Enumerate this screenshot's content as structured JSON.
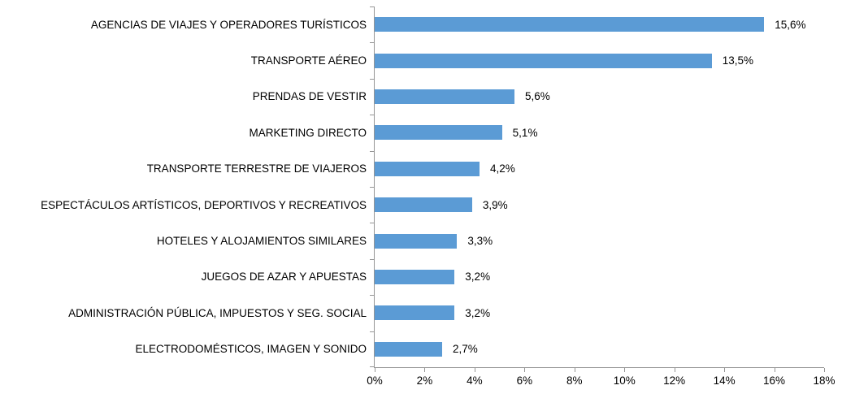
{
  "chart_data": {
    "type": "bar",
    "orientation": "horizontal",
    "title": "",
    "xlabel": "",
    "ylabel": "",
    "xlim": [
      0,
      18
    ],
    "x_tick_labels": [
      "0%",
      "2%",
      "4%",
      "6%",
      "8%",
      "10%",
      "12%",
      "14%",
      "16%",
      "18%"
    ],
    "grid": false,
    "legend": "none",
    "bar_color": "#5B9BD5",
    "axis_color": "#969696",
    "text_color": "#000000",
    "categories": [
      "AGENCIAS DE VIAJES Y OPERADORES TURÍSTICOS",
      "TRANSPORTE AÉREO",
      "PRENDAS DE VESTIR",
      "MARKETING DIRECTO",
      "TRANSPORTE TERRESTRE DE VIAJEROS",
      "ESPECTÁCULOS ARTÍSTICOS, DEPORTIVOS Y RECREATIVOS",
      "HOTELES  Y ALOJAMIENTOS SIMILARES",
      "JUEGOS DE AZAR Y APUESTAS",
      "ADMINISTRACIÓN PÚBLICA, IMPUESTOS Y SEG. SOCIAL",
      "ELECTRODOMÉSTICOS,  IMAGEN Y SONIDO"
    ],
    "values": [
      15.6,
      13.5,
      5.6,
      5.1,
      4.2,
      3.9,
      3.3,
      3.2,
      3.2,
      2.7
    ],
    "value_labels": [
      "15,6%",
      "13,5%",
      "5,6%",
      "5,1%",
      "4,2%",
      "3,9%",
      "3,3%",
      "3,2%",
      "3,2%",
      "2,7%"
    ]
  }
}
